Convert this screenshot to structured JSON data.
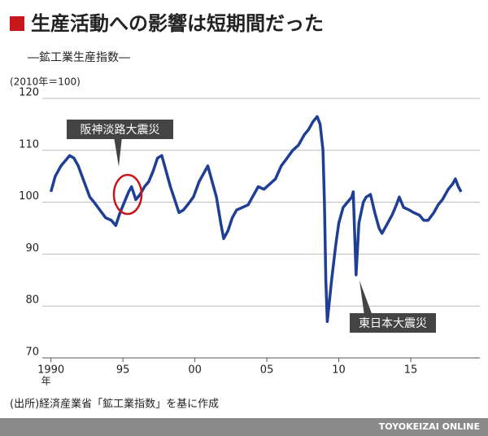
{
  "chart_data": {
    "type": "line",
    "title": "生産活動への影響は短期間だった",
    "subtitle": "―鉱工業生産指数―",
    "y_unit": "(2010年＝100)",
    "x_unit": "年",
    "source": "(出所)経済産業省「鉱工業指数」を基に作成",
    "credit": "TOYOKEIZAI ONLINE",
    "annotations": [
      "阪神淡路大震災",
      "東日本大震災"
    ],
    "xlim": [
      1989.4,
      2019.8
    ],
    "ylim": [
      70,
      120
    ],
    "xticks": [
      1990,
      {
        "value": 1995,
        "label": "95"
      },
      {
        "value": 2000,
        "label": "00"
      },
      {
        "value": 2005,
        "label": "05"
      },
      {
        "value": 2010,
        "label": "10"
      },
      {
        "value": 2015,
        "label": "15"
      }
    ],
    "yticks": [
      70,
      80,
      90,
      100,
      110,
      120
    ],
    "grid": true,
    "x": [
      1990.0,
      1990.3,
      1990.7,
      1991.0,
      1991.3,
      1991.6,
      1991.9,
      1992.3,
      1992.7,
      1993.0,
      1993.4,
      1993.8,
      1994.2,
      1994.5,
      1994.8,
      1995.1,
      1995.4,
      1995.6,
      1995.9,
      1996.2,
      1996.5,
      1996.8,
      1997.1,
      1997.4,
      1997.7,
      1998.0,
      1998.3,
      1998.6,
      1998.9,
      1999.2,
      1999.5,
      1999.9,
      2000.3,
      2000.7,
      2000.9,
      2001.2,
      2001.5,
      2001.8,
      2002.0,
      2002.3,
      2002.6,
      2002.9,
      2003.3,
      2003.7,
      2004.0,
      2004.4,
      2004.8,
      2005.2,
      2005.6,
      2006.0,
      2006.4,
      2006.8,
      2007.2,
      2007.6,
      2007.9,
      2008.2,
      2008.5,
      2008.7,
      2008.9,
      2009.0,
      2009.1,
      2009.2,
      2009.5,
      2009.8,
      2010.0,
      2010.3,
      2010.6,
      2010.9,
      2011.0,
      2011.2,
      2011.4,
      2011.7,
      2011.9,
      2012.2,
      2012.5,
      2012.8,
      2013.0,
      2013.3,
      2013.7,
      2014.0,
      2014.2,
      2014.5,
      2014.9,
      2015.2,
      2015.6,
      2015.9,
      2016.2,
      2016.6,
      2016.9,
      2017.2,
      2017.6,
      2017.9,
      2018.1,
      2018.3,
      2018.5
    ],
    "series": [
      {
        "name": "鉱工業生産指数",
        "color": "#1f3f95",
        "values": [
          102,
          105,
          107,
          108,
          109,
          108.5,
          107,
          104,
          101,
          100,
          98.5,
          97,
          96.5,
          95.5,
          98,
          100,
          102,
          103,
          100.5,
          101.5,
          103,
          104,
          106,
          108.5,
          109,
          106,
          103,
          100.5,
          98,
          98.5,
          99.5,
          101,
          104,
          106,
          107,
          104,
          101,
          96,
          93,
          94.5,
          97,
          98.5,
          99,
          99.5,
          101,
          103,
          102.5,
          103.5,
          104.5,
          107,
          108.5,
          110,
          111,
          113,
          114,
          115.5,
          116.5,
          115,
          110,
          100,
          85,
          77,
          85,
          92,
          96,
          99,
          100,
          101,
          102,
          86,
          96,
          100,
          101,
          101.5,
          98,
          95,
          94,
          95.5,
          97.5,
          99.5,
          101,
          99,
          98.5,
          98,
          97.5,
          96.5,
          96.5,
          98,
          99.5,
          100.5,
          102.5,
          103.5,
          104.5,
          103,
          102
        ]
      }
    ]
  }
}
